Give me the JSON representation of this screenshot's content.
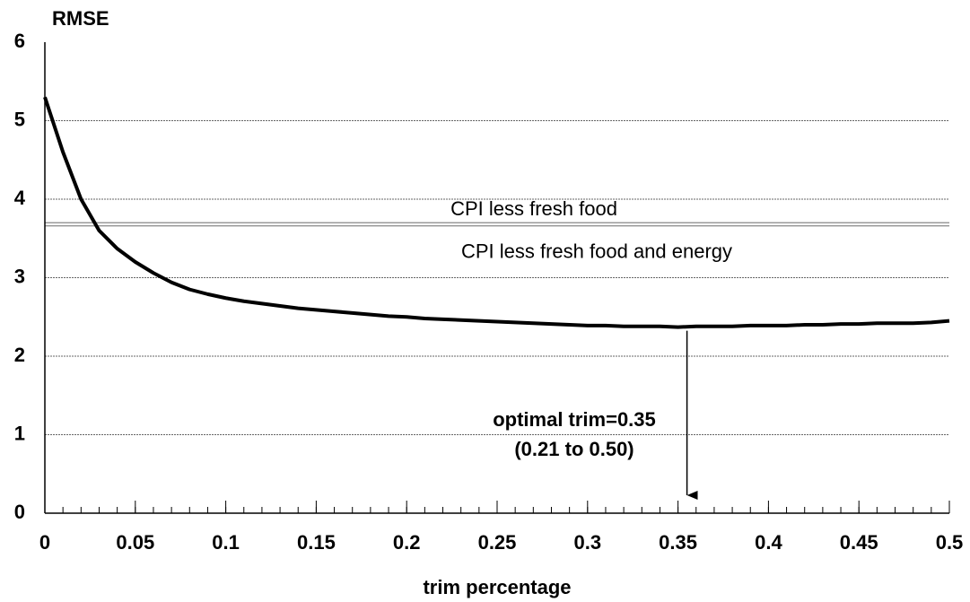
{
  "chart_data": {
    "type": "line",
    "y_label": "RMSE",
    "x_label": "trim percentage",
    "color": "#000000",
    "x": [
      0,
      0.01,
      0.02,
      0.03,
      0.04,
      0.05,
      0.06,
      0.07,
      0.08,
      0.09,
      0.1,
      0.11,
      0.12,
      0.13,
      0.14,
      0.15,
      0.16,
      0.17,
      0.18,
      0.19,
      0.2,
      0.21,
      0.22,
      0.23,
      0.24,
      0.25,
      0.26,
      0.27,
      0.28,
      0.29,
      0.3,
      0.31,
      0.32,
      0.33,
      0.34,
      0.35,
      0.36,
      0.37,
      0.38,
      0.39,
      0.4,
      0.41,
      0.42,
      0.43,
      0.44,
      0.45,
      0.46,
      0.47,
      0.48,
      0.49,
      0.5
    ],
    "values": [
      5.3,
      4.6,
      4.0,
      3.6,
      3.37,
      3.2,
      3.06,
      2.94,
      2.85,
      2.79,
      2.74,
      2.7,
      2.67,
      2.64,
      2.61,
      2.59,
      2.57,
      2.55,
      2.53,
      2.51,
      2.5,
      2.48,
      2.47,
      2.46,
      2.45,
      2.44,
      2.43,
      2.42,
      2.41,
      2.4,
      2.39,
      2.39,
      2.38,
      2.38,
      2.38,
      2.37,
      2.38,
      2.38,
      2.38,
      2.39,
      2.39,
      2.39,
      2.4,
      2.4,
      2.41,
      2.41,
      2.42,
      2.42,
      2.42,
      2.43,
      2.45
    ],
    "reference_lines": [
      {
        "name": "CPI less fresh food",
        "value": 3.7
      },
      {
        "name": "CPI less fresh food and energy",
        "value": 3.66
      }
    ],
    "annotation": [
      "optimal trim=0.35",
      "(0.21 to 0.50)"
    ],
    "xlim": [
      0,
      0.5
    ],
    "xticks": [
      0,
      0.05,
      0.1,
      0.15,
      0.2,
      0.25,
      0.3,
      0.35,
      0.4,
      0.45,
      0.5
    ],
    "ylim": [
      0,
      6
    ],
    "yticks": [
      0,
      1,
      2,
      3,
      4,
      5,
      6
    ],
    "grid": true
  }
}
